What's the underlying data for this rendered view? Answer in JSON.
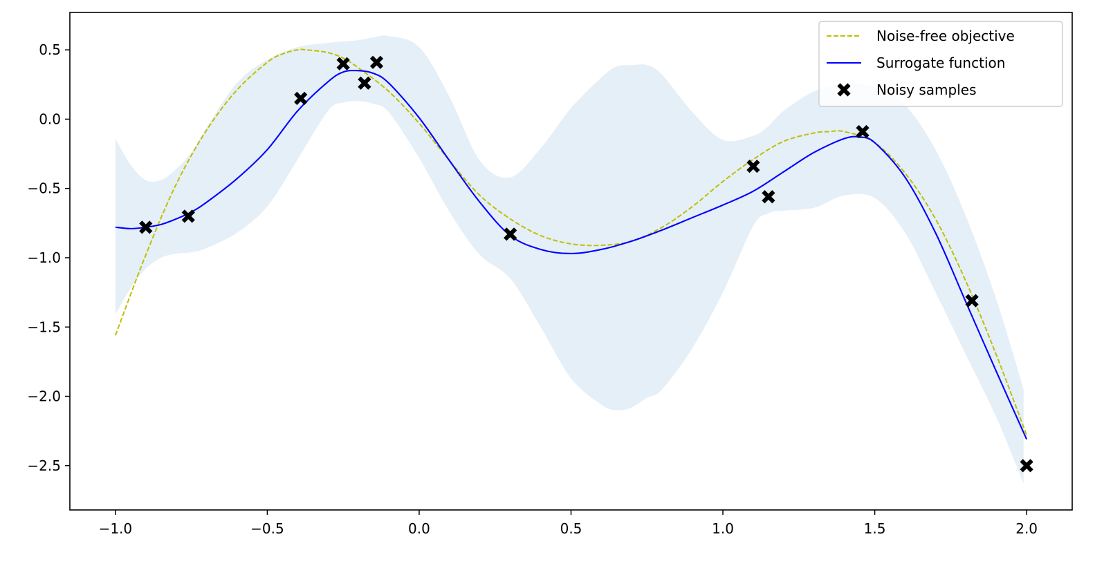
{
  "chart_data": {
    "type": "line",
    "title": "",
    "xlabel": "",
    "ylabel": "",
    "xlim": [
      -1.15,
      2.15
    ],
    "ylim": [
      -2.82,
      0.77
    ],
    "grid": false,
    "legend_position": "top-right",
    "x_ticks": [
      -1.0,
      -0.5,
      0.0,
      0.5,
      1.0,
      1.5,
      2.0
    ],
    "x_tick_labels": [
      "−1.0",
      "−0.5",
      "0.0",
      "0.5",
      "1.0",
      "1.5",
      "2.0"
    ],
    "y_ticks": [
      0.5,
      0.0,
      -0.5,
      -1.0,
      -1.5,
      -2.0,
      -2.5
    ],
    "y_tick_labels": [
      "0.5",
      "0.0",
      "−0.5",
      "−1.0",
      "−1.5",
      "−2.0",
      "−2.5"
    ],
    "colors": {
      "objective": "#bfbf00",
      "surrogate": "#0000ff",
      "samples": "#000000",
      "band": "#e5eff7",
      "axes": "#000000"
    },
    "series": [
      {
        "name": "Noise-free objective",
        "style": "dashed",
        "x": [
          -1.0,
          -0.9,
          -0.8,
          -0.7,
          -0.6,
          -0.5,
          -0.45,
          -0.4,
          -0.37,
          -0.3,
          -0.25,
          -0.2,
          -0.1,
          0.0,
          0.1,
          0.2,
          0.3,
          0.4,
          0.5,
          0.6,
          0.7,
          0.8,
          0.9,
          1.0,
          1.1,
          1.2,
          1.3,
          1.35,
          1.4,
          1.5,
          1.6,
          1.7,
          1.8,
          1.9,
          2.0
        ],
        "y": [
          -1.56,
          -0.98,
          -0.47,
          -0.08,
          0.21,
          0.41,
          0.47,
          0.5,
          0.5,
          0.48,
          0.44,
          0.37,
          0.2,
          -0.03,
          -0.3,
          -0.55,
          -0.72,
          -0.84,
          -0.9,
          -0.91,
          -0.88,
          -0.78,
          -0.63,
          -0.45,
          -0.29,
          -0.16,
          -0.1,
          -0.09,
          -0.09,
          -0.17,
          -0.39,
          -0.72,
          -1.17,
          -1.7,
          -2.28
        ]
      },
      {
        "name": "Surrogate function",
        "style": "solid",
        "x": [
          -1.0,
          -0.95,
          -0.9,
          -0.85,
          -0.8,
          -0.75,
          -0.7,
          -0.6,
          -0.5,
          -0.4,
          -0.3,
          -0.25,
          -0.2,
          -0.15,
          -0.1,
          0.0,
          0.1,
          0.2,
          0.3,
          0.4,
          0.5,
          0.6,
          0.7,
          0.8,
          0.9,
          1.0,
          1.1,
          1.2,
          1.3,
          1.4,
          1.45,
          1.5,
          1.6,
          1.7,
          1.8,
          1.9,
          2.0
        ],
        "y": [
          -0.78,
          -0.79,
          -0.78,
          -0.76,
          -0.72,
          -0.67,
          -0.6,
          -0.43,
          -0.22,
          0.06,
          0.27,
          0.34,
          0.35,
          0.33,
          0.26,
          0.01,
          -0.3,
          -0.6,
          -0.84,
          -0.94,
          -0.97,
          -0.94,
          -0.88,
          -0.8,
          -0.71,
          -0.62,
          -0.52,
          -0.38,
          -0.24,
          -0.14,
          -0.13,
          -0.17,
          -0.42,
          -0.82,
          -1.32,
          -1.82,
          -2.31
        ]
      }
    ],
    "band": {
      "name": "confidence interval",
      "x": [
        -1.0,
        -0.95,
        -0.9,
        -0.85,
        -0.8,
        -0.75,
        -0.7,
        -0.6,
        -0.5,
        -0.4,
        -0.3,
        -0.25,
        -0.2,
        -0.15,
        -0.1,
        0.0,
        0.1,
        0.2,
        0.3,
        0.4,
        0.5,
        0.6,
        0.65,
        0.7,
        0.75,
        0.8,
        0.9,
        1.0,
        1.1,
        1.15,
        1.2,
        1.3,
        1.4,
        1.5,
        1.6,
        1.7,
        1.8,
        1.9,
        1.99
      ],
      "upper": [
        -0.14,
        -0.33,
        -0.44,
        -0.44,
        -0.36,
        -0.24,
        -0.06,
        0.26,
        0.43,
        0.52,
        0.55,
        0.56,
        0.57,
        0.59,
        0.6,
        0.52,
        0.16,
        -0.3,
        -0.42,
        -0.21,
        0.08,
        0.3,
        0.38,
        0.39,
        0.39,
        0.32,
        0.05,
        -0.15,
        -0.12,
        -0.05,
        0.06,
        0.2,
        0.25,
        0.23,
        0.1,
        -0.22,
        -0.7,
        -1.3,
        -1.95
      ],
      "lower": [
        -1.41,
        -1.22,
        -1.08,
        -1.0,
        -0.97,
        -0.96,
        -0.93,
        -0.82,
        -0.63,
        -0.29,
        0.06,
        0.12,
        0.13,
        0.11,
        0.05,
        -0.28,
        -0.67,
        -0.98,
        -1.15,
        -1.5,
        -1.87,
        -2.06,
        -2.1,
        -2.08,
        -2.01,
        -1.95,
        -1.65,
        -1.25,
        -0.77,
        -0.68,
        -0.66,
        -0.64,
        -0.55,
        -0.57,
        -0.82,
        -1.25,
        -1.7,
        -2.15,
        -2.63
      ]
    },
    "samples": {
      "name": "Noisy samples",
      "x": [
        -0.9,
        -0.76,
        -0.39,
        -0.25,
        -0.18,
        -0.14,
        0.3,
        1.1,
        1.15,
        1.46,
        1.82,
        2.0
      ],
      "y": [
        -0.78,
        -0.7,
        0.15,
        0.4,
        0.26,
        0.41,
        -0.83,
        -0.34,
        -0.56,
        -0.09,
        -1.31,
        -2.5
      ]
    }
  }
}
